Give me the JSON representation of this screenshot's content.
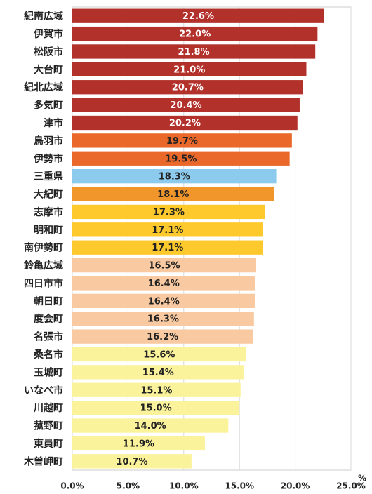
{
  "chart_data": {
    "type": "hbar",
    "categories": [
      "紀南広域",
      "伊賀市",
      "松阪市",
      "大台町",
      "紀北広域",
      "多気町",
      "津市",
      "鳥羽市",
      "伊勢市",
      "三重県",
      "大紀町",
      "志摩市",
      "明和町",
      "南伊勢町",
      "鈴亀広域",
      "四日市市",
      "朝日町",
      "度会町",
      "名張市",
      "桑名市",
      "玉城町",
      "いなべ市",
      "川越町",
      "菰野町",
      "東員町",
      "木曽岬町"
    ],
    "values": [
      22.6,
      22.0,
      21.8,
      21.0,
      20.7,
      20.4,
      20.2,
      19.7,
      19.5,
      18.3,
      18.1,
      17.3,
      17.1,
      17.1,
      16.5,
      16.4,
      16.4,
      16.3,
      16.2,
      15.6,
      15.4,
      15.1,
      15.0,
      14.0,
      11.9,
      10.7
    ],
    "value_labels": [
      "22.6%",
      "22.0%",
      "21.8%",
      "21.0%",
      "20.7%",
      "20.4%",
      "20.2%",
      "19.7%",
      "19.5%",
      "18.3%",
      "18.1%",
      "17.3%",
      "17.1%",
      "17.1%",
      "16.5%",
      "16.4%",
      "16.4%",
      "16.3%",
      "16.2%",
      "15.6%",
      "15.4%",
      "15.1%",
      "15.0%",
      "14.0%",
      "11.9%",
      "10.7%"
    ],
    "colors": [
      "#b3312b",
      "#b3312b",
      "#b3312b",
      "#b3312b",
      "#b3312b",
      "#b3312b",
      "#b3312b",
      "#e9682a",
      "#e9682a",
      "#8ccbee",
      "#f0962b",
      "#fdc92c",
      "#fdc92c",
      "#fdc92c",
      "#f9caa2",
      "#f9caa2",
      "#f9caa2",
      "#f9caa2",
      "#f9caa2",
      "#fbf39c",
      "#fbf39c",
      "#fbf39c",
      "#fbf39c",
      "#fbf39c",
      "#fbf39c",
      "#fbf39c"
    ],
    "x_label": "%",
    "xlim": [
      0,
      25
    ],
    "xticks": [
      {
        "value": 0,
        "label": "0.0%"
      },
      {
        "value": 5,
        "label": "5.0%"
      },
      {
        "value": 10,
        "label": "10.0%"
      },
      {
        "value": 15,
        "label": "15.0%"
      },
      {
        "value": 20,
        "label": "20.0%"
      },
      {
        "value": 25,
        "label": "25.0%"
      }
    ],
    "grid": true
  }
}
